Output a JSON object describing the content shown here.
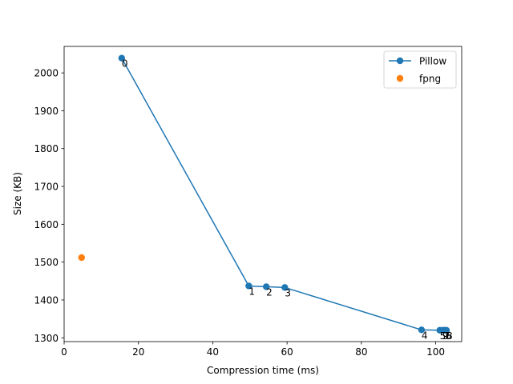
{
  "chart_data": {
    "type": "scatter",
    "title": "",
    "xlabel": "Compression time (ms)",
    "ylabel": "Size (KB)",
    "xlim": [
      0,
      107
    ],
    "ylim": [
      1290,
      2070
    ],
    "xticks": [
      0,
      20,
      40,
      60,
      80,
      100
    ],
    "yticks": [
      1300,
      1400,
      1500,
      1600,
      1700,
      1800,
      1900,
      2000
    ],
    "grid": false,
    "legend_position": "top-right",
    "series": [
      {
        "name": "Pillow",
        "color": "#1f77b4",
        "style": "line-marker",
        "points": [
          {
            "x": 15.5,
            "y": 2039,
            "label": "0"
          },
          {
            "x": 49.7,
            "y": 1437,
            "label": "1"
          },
          {
            "x": 54.4,
            "y": 1435,
            "label": "2"
          },
          {
            "x": 59.4,
            "y": 1433,
            "label": "3"
          },
          {
            "x": 96.2,
            "y": 1321,
            "label": "4"
          },
          {
            "x": 101.1,
            "y": 1320,
            "label": "5"
          },
          {
            "x": 101.8,
            "y": 1320,
            "label": "9"
          },
          {
            "x": 102.2,
            "y": 1320,
            "label": "7"
          },
          {
            "x": 102.6,
            "y": 1320,
            "label": "6"
          },
          {
            "x": 102.9,
            "y": 1320,
            "label": "8"
          }
        ]
      },
      {
        "name": "fpng",
        "color": "#ff7f0e",
        "style": "marker",
        "points": [
          {
            "x": 4.7,
            "y": 1512,
            "label": ""
          }
        ]
      }
    ]
  }
}
